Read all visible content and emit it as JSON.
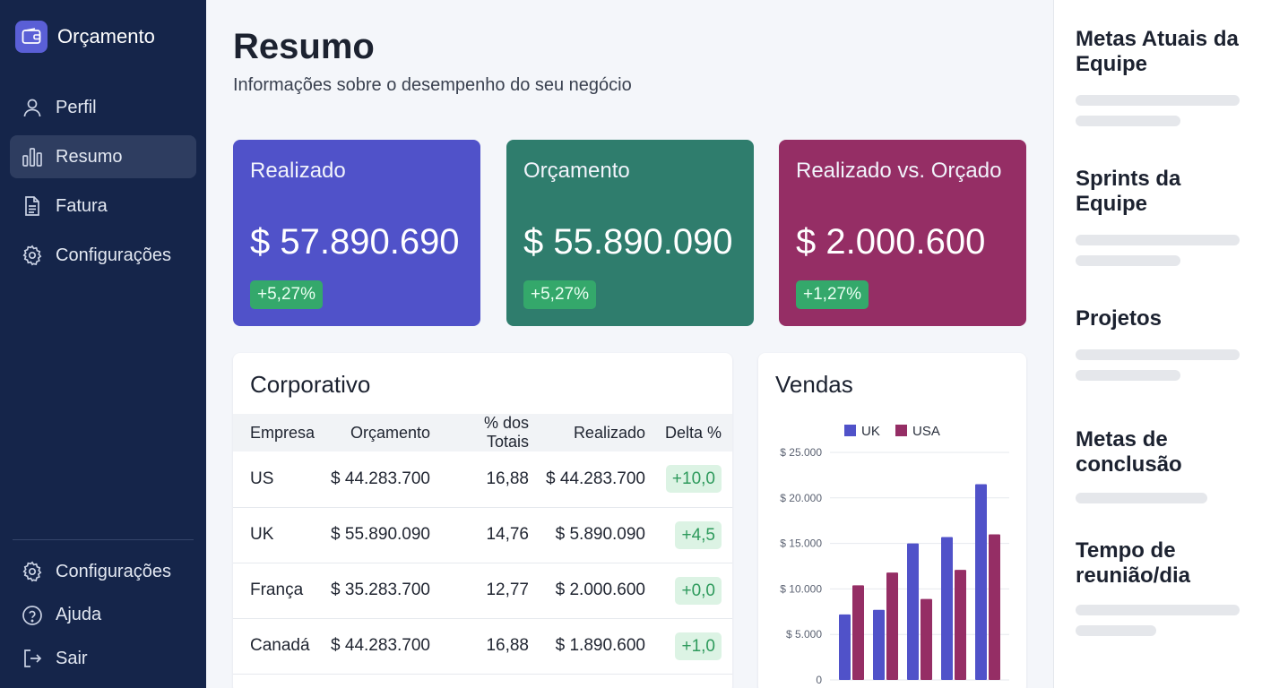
{
  "app": {
    "name": "Orçamento"
  },
  "nav": {
    "items": [
      {
        "label": "Perfil",
        "icon": "user-icon"
      },
      {
        "label": "Resumo",
        "icon": "bar-chart-icon",
        "active": true
      },
      {
        "label": "Fatura",
        "icon": "document-icon"
      },
      {
        "label": "Configurações",
        "icon": "gear-icon"
      }
    ],
    "bottom": [
      {
        "label": "Configurações",
        "icon": "gear-icon"
      },
      {
        "label": "Ajuda",
        "icon": "help-icon"
      },
      {
        "label": "Sair",
        "icon": "logout-icon"
      }
    ]
  },
  "page": {
    "title": "Resumo",
    "subtitle": "Informações sobre o desempenho do seu negócio"
  },
  "kpis": [
    {
      "label": "Realizado",
      "value": "$ 57.890.690",
      "change": "+5,27%",
      "color": "#5052c9"
    },
    {
      "label": "Orçamento",
      "value": "$ 55.890.090",
      "change": "+5,27%",
      "color": "#2f7d6d"
    },
    {
      "label": "Realizado vs. Orçado",
      "value": "$ 2.000.600",
      "change": "+1,27%",
      "color": "#952e65"
    }
  ],
  "corporate": {
    "title": "Corporativo",
    "headers": [
      "Empresa",
      "Orçamento",
      "% dos Totais",
      "Realizado",
      "Delta %"
    ],
    "rows": [
      [
        "US",
        "$ 44.283.700",
        "16,88",
        "$ 44.283.700",
        "+10,0"
      ],
      [
        "UK",
        "$ 55.890.090",
        "14,76",
        "$ 5.890.090",
        "+4,5"
      ],
      [
        "França",
        "$ 35.283.700",
        "12,77",
        "$ 2.000.600",
        "+0,0"
      ],
      [
        "Canadá",
        "$ 44.283.700",
        "16,88",
        "$ 1.890.600",
        "+1,0"
      ]
    ]
  },
  "sales": {
    "title": "Vendas"
  },
  "chart_data": {
    "type": "bar",
    "categories": [
      "",
      "",
      "",
      "",
      ""
    ],
    "series": [
      {
        "name": "UK",
        "values": [
          7200,
          7700,
          15000,
          15700,
          21500
        ],
        "color": "#5052c9"
      },
      {
        "name": "USA",
        "values": [
          10400,
          11800,
          8900,
          12100,
          16000
        ],
        "color": "#952e65"
      }
    ],
    "yticks": [
      "0",
      "$ 5.000",
      "$ 10.000",
      "$ 15.000",
      "$ 20.000",
      "$ 25.000"
    ],
    "ylim": [
      0,
      25000
    ],
    "legend": "top",
    "grid": true
  },
  "goals": [
    {
      "title": "Metas Atuais da Equipe"
    },
    {
      "title": "Sprints da Equipe"
    },
    {
      "title": "Projetos"
    },
    {
      "title": "Metas de conclusão"
    },
    {
      "title": "Tempo de reunião/dia"
    }
  ]
}
